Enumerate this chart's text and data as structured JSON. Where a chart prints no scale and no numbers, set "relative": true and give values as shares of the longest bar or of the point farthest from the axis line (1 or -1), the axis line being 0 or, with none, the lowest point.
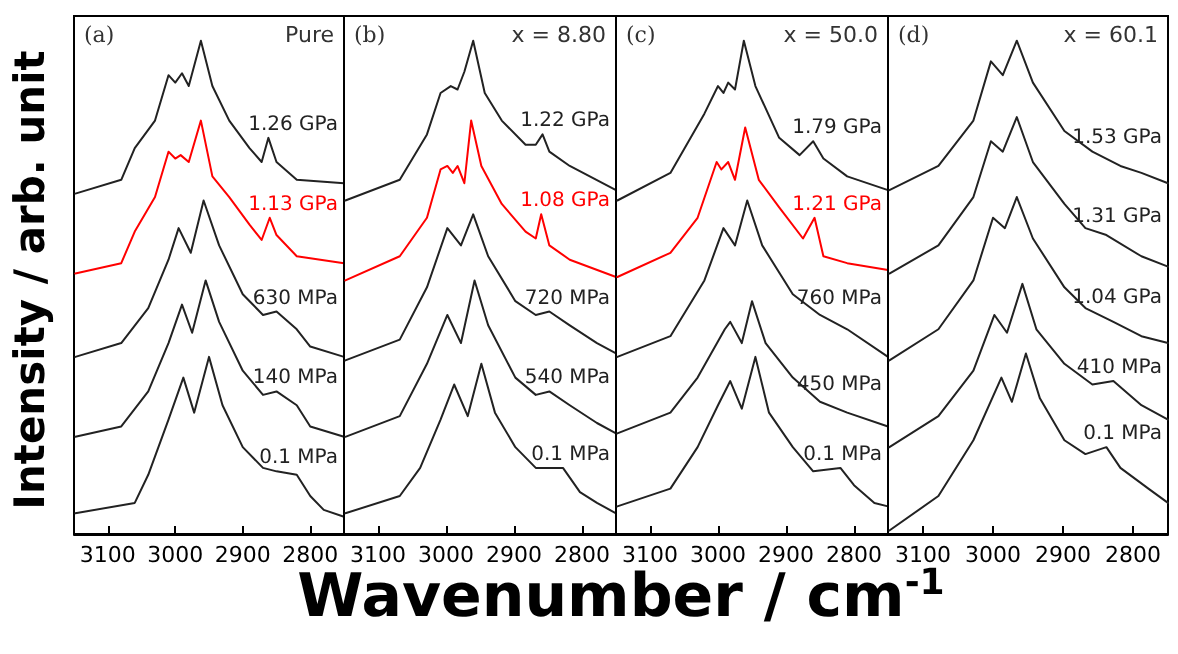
{
  "chart_data": [
    {
      "type": "line",
      "relative": true,
      "ylabel": "Intensity / arb. unit",
      "xlabel": "Wavenumber / cm$^{-1}$",
      "annotations": [
        "(a)",
        "Pure"
      ],
      "xlim": [
        3150,
        2750
      ],
      "xticks": [
        3100,
        3000,
        2900,
        2800
      ],
      "tick_labels": "x",
      "grid": false,
      "marker": "none",
      "line_style": "solid",
      "series": [
        {
          "name": "0.1 MPa",
          "color": "#222222",
          "x": [
            3148,
            3060,
            3040,
            3010,
            2988,
            2972,
            2950,
            2930,
            2900,
            2870,
            2850,
            2820,
            2800,
            2780,
            2750
          ],
          "values": [
            0.042,
            0.063,
            0.12,
            0.232,
            0.317,
            0.246,
            0.359,
            0.261,
            0.176,
            0.134,
            0.127,
            0.12,
            0.077,
            0.049,
            0.035
          ]
        },
        {
          "name": "140 MPa",
          "color": "#222222",
          "x": [
            3148,
            3080,
            3040,
            3010,
            2990,
            2975,
            2955,
            2935,
            2900,
            2870,
            2850,
            2820,
            2800,
            2750
          ],
          "values": [
            0.197,
            0.218,
            0.289,
            0.387,
            0.465,
            0.408,
            0.514,
            0.43,
            0.331,
            0.282,
            0.289,
            0.261,
            0.218,
            0.197
          ]
        },
        {
          "name": "630 MPa",
          "color": "#222222",
          "x": [
            3148,
            3080,
            3040,
            3010,
            2995,
            2977,
            2958,
            2935,
            2900,
            2870,
            2850,
            2820,
            2800,
            2750
          ],
          "values": [
            0.359,
            0.387,
            0.458,
            0.556,
            0.62,
            0.57,
            0.676,
            0.585,
            0.486,
            0.444,
            0.451,
            0.415,
            0.38,
            0.359
          ]
        },
        {
          "name": "1.13 GPa",
          "color": "#ff0000",
          "x": [
            3148,
            3080,
            3060,
            3030,
            3010,
            3000,
            2992,
            2980,
            2962,
            2945,
            2920,
            2890,
            2872,
            2860,
            2850,
            2820,
            2750
          ],
          "values": [
            0.528,
            0.549,
            0.613,
            0.683,
            0.775,
            0.761,
            0.768,
            0.754,
            0.838,
            0.725,
            0.683,
            0.627,
            0.596,
            0.641,
            0.606,
            0.563,
            0.549
          ]
        },
        {
          "name": "1.26 GPa",
          "color": "#222222",
          "x": [
            3148,
            3080,
            3060,
            3030,
            3010,
            3000,
            2990,
            2980,
            2962,
            2945,
            2920,
            2890,
            2872,
            2862,
            2850,
            2820,
            2750
          ],
          "values": [
            0.69,
            0.718,
            0.782,
            0.838,
            0.93,
            0.915,
            0.934,
            0.908,
            1,
            0.908,
            0.838,
            0.782,
            0.754,
            0.803,
            0.754,
            0.718,
            0.711
          ]
        }
      ]
    },
    {
      "type": "line",
      "relative": true,
      "annotations": [
        "(b)",
        "x = 8.80"
      ],
      "xlim": [
        3150,
        2750
      ],
      "xticks": [
        3100,
        3000,
        2900,
        2800
      ],
      "tick_labels": "x",
      "grid": false,
      "marker": "none",
      "line_style": "solid",
      "series": [
        {
          "name": "0.1 MPa",
          "color": "#222222",
          "x": [
            3148,
            3068,
            3038,
            3008,
            2988,
            2968,
            2948,
            2928,
            2898,
            2868,
            2828,
            2803,
            2778,
            2750
          ],
          "values": [
            0.042,
            0.077,
            0.134,
            0.232,
            0.303,
            0.239,
            0.345,
            0.246,
            0.176,
            0.134,
            0.134,
            0.085,
            0.063,
            0.042
          ]
        },
        {
          "name": "540 MPa",
          "color": "#222222",
          "x": [
            3148,
            3068,
            3028,
            2998,
            2978,
            2958,
            2938,
            2898,
            2868,
            2848,
            2818,
            2778,
            2750
          ],
          "values": [
            0.197,
            0.239,
            0.345,
            0.444,
            0.387,
            0.514,
            0.423,
            0.317,
            0.282,
            0.289,
            0.261,
            0.225,
            0.204
          ]
        },
        {
          "name": "720 MPa",
          "color": "#222222",
          "x": [
            3148,
            3068,
            3028,
            2998,
            2978,
            2960,
            2938,
            2898,
            2868,
            2848,
            2818,
            2778,
            2750
          ],
          "values": [
            0.352,
            0.394,
            0.5,
            0.62,
            0.585,
            0.648,
            0.563,
            0.472,
            0.444,
            0.451,
            0.423,
            0.387,
            0.366
          ]
        },
        {
          "name": "1.08 GPa",
          "color": "#ff0000",
          "x": [
            3148,
            3068,
            3028,
            3008,
            2998,
            2990,
            2983,
            2973,
            2963,
            2948,
            2918,
            2883,
            2868,
            2860,
            2848,
            2818,
            2750
          ],
          "values": [
            0.514,
            0.563,
            0.641,
            0.739,
            0.746,
            0.732,
            0.746,
            0.711,
            0.838,
            0.746,
            0.669,
            0.613,
            0.599,
            0.648,
            0.585,
            0.556,
            0.521
          ]
        },
        {
          "name": "1.22 GPa",
          "color": "#222222",
          "x": [
            3148,
            3068,
            3028,
            3008,
            2993,
            2983,
            2973,
            2960,
            2943,
            2918,
            2883,
            2868,
            2858,
            2848,
            2818,
            2750
          ],
          "values": [
            0.676,
            0.718,
            0.81,
            0.894,
            0.908,
            0.901,
            0.937,
            1,
            0.894,
            0.838,
            0.789,
            0.789,
            0.81,
            0.775,
            0.746,
            0.697
          ]
        }
      ]
    },
    {
      "type": "line",
      "relative": true,
      "annotations": [
        "(c)",
        "x = 50.0"
      ],
      "xlim": [
        3150,
        2750
      ],
      "xticks": [
        3100,
        3000,
        2900,
        2800
      ],
      "tick_labels": "x",
      "grid": false,
      "marker": "none",
      "line_style": "solid",
      "series": [
        {
          "name": "0.1 MPa",
          "color": "#222222",
          "x": [
            3148,
            3070,
            3030,
            3000,
            2982,
            2965,
            2945,
            2925,
            2890,
            2860,
            2820,
            2800,
            2770,
            2750
          ],
          "values": [
            0.056,
            0.092,
            0.176,
            0.261,
            0.31,
            0.254,
            0.359,
            0.246,
            0.176,
            0.127,
            0.134,
            0.099,
            0.063,
            0.056
          ]
        },
        {
          "name": "450 MPa",
          "color": "#222222",
          "x": [
            3148,
            3070,
            3030,
            2990,
            2982,
            2965,
            2950,
            2930,
            2890,
            2850,
            2810,
            2750
          ],
          "values": [
            0.204,
            0.246,
            0.317,
            0.415,
            0.43,
            0.387,
            0.472,
            0.387,
            0.317,
            0.268,
            0.246,
            0.218
          ]
        },
        {
          "name": "760 MPa",
          "color": "#222222",
          "x": [
            3148,
            3070,
            3020,
            2992,
            2975,
            2957,
            2935,
            2890,
            2850,
            2810,
            2750
          ],
          "values": [
            0.359,
            0.401,
            0.514,
            0.62,
            0.585,
            0.676,
            0.585,
            0.486,
            0.444,
            0.415,
            0.359
          ]
        },
        {
          "name": "1.21 GPa",
          "color": "#ff0000",
          "x": [
            3148,
            3070,
            3030,
            3002,
            2995,
            2985,
            2975,
            2960,
            2940,
            2910,
            2875,
            2858,
            2845,
            2810,
            2750
          ],
          "values": [
            0.521,
            0.57,
            0.641,
            0.754,
            0.739,
            0.754,
            0.718,
            0.824,
            0.718,
            0.662,
            0.599,
            0.641,
            0.563,
            0.549,
            0.535
          ]
        },
        {
          "name": "1.79 GPa",
          "color": "#222222",
          "x": [
            3148,
            3070,
            3020,
            3000,
            2992,
            2985,
            2975,
            2962,
            2945,
            2910,
            2880,
            2860,
            2845,
            2810,
            2750
          ],
          "values": [
            0.676,
            0.732,
            0.852,
            0.908,
            0.894,
            0.915,
            0.901,
            1,
            0.908,
            0.803,
            0.768,
            0.796,
            0.761,
            0.725,
            0.697
          ]
        }
      ]
    },
    {
      "type": "line",
      "relative": true,
      "annotations": [
        "(d)",
        "x = 60.1"
      ],
      "xlim": [
        3150,
        2750
      ],
      "xticks": [
        3100,
        3000,
        2900,
        2800
      ],
      "tick_labels": "x",
      "grid": false,
      "marker": "none",
      "line_style": "solid",
      "series": [
        {
          "name": "0.1 MPa",
          "color": "#222222",
          "x": [
            3148,
            3078,
            3028,
            2988,
            2973,
            2953,
            2933,
            2898,
            2868,
            2838,
            2818,
            2778,
            2750
          ],
          "values": [
            0.007,
            0.077,
            0.19,
            0.317,
            0.268,
            0.366,
            0.275,
            0.19,
            0.162,
            0.176,
            0.134,
            0.092,
            0.063
          ]
        },
        {
          "name": "410 MPa",
          "color": "#222222",
          "x": [
            3148,
            3078,
            3028,
            2998,
            2980,
            2958,
            2938,
            2898,
            2858,
            2828,
            2788,
            2750
          ],
          "values": [
            0.176,
            0.239,
            0.331,
            0.444,
            0.408,
            0.507,
            0.415,
            0.345,
            0.303,
            0.31,
            0.261,
            0.232
          ]
        },
        {
          "name": "1.04 GPa",
          "color": "#222222",
          "x": [
            3148,
            3078,
            3028,
            3000,
            2983,
            2966,
            2943,
            2898,
            2868,
            2828,
            2788,
            2750
          ],
          "values": [
            0.352,
            0.415,
            0.514,
            0.641,
            0.62,
            0.683,
            0.599,
            0.5,
            0.458,
            0.43,
            0.401,
            0.387
          ]
        },
        {
          "name": "1.31 GPa",
          "color": "#222222",
          "x": [
            3148,
            3078,
            3028,
            3003,
            2986,
            2966,
            2943,
            2898,
            2868,
            2838,
            2788,
            2750
          ],
          "values": [
            0.528,
            0.585,
            0.683,
            0.796,
            0.775,
            0.845,
            0.754,
            0.669,
            0.62,
            0.606,
            0.563,
            0.542
          ]
        },
        {
          "name": "1.53 GPa",
          "color": "#222222",
          "x": [
            3148,
            3078,
            3028,
            3003,
            2986,
            2966,
            2943,
            2898,
            2858,
            2818,
            2788,
            2750
          ],
          "values": [
            0.697,
            0.746,
            0.838,
            0.958,
            0.93,
            1,
            0.915,
            0.817,
            0.775,
            0.746,
            0.732,
            0.711
          ]
        }
      ]
    }
  ]
}
